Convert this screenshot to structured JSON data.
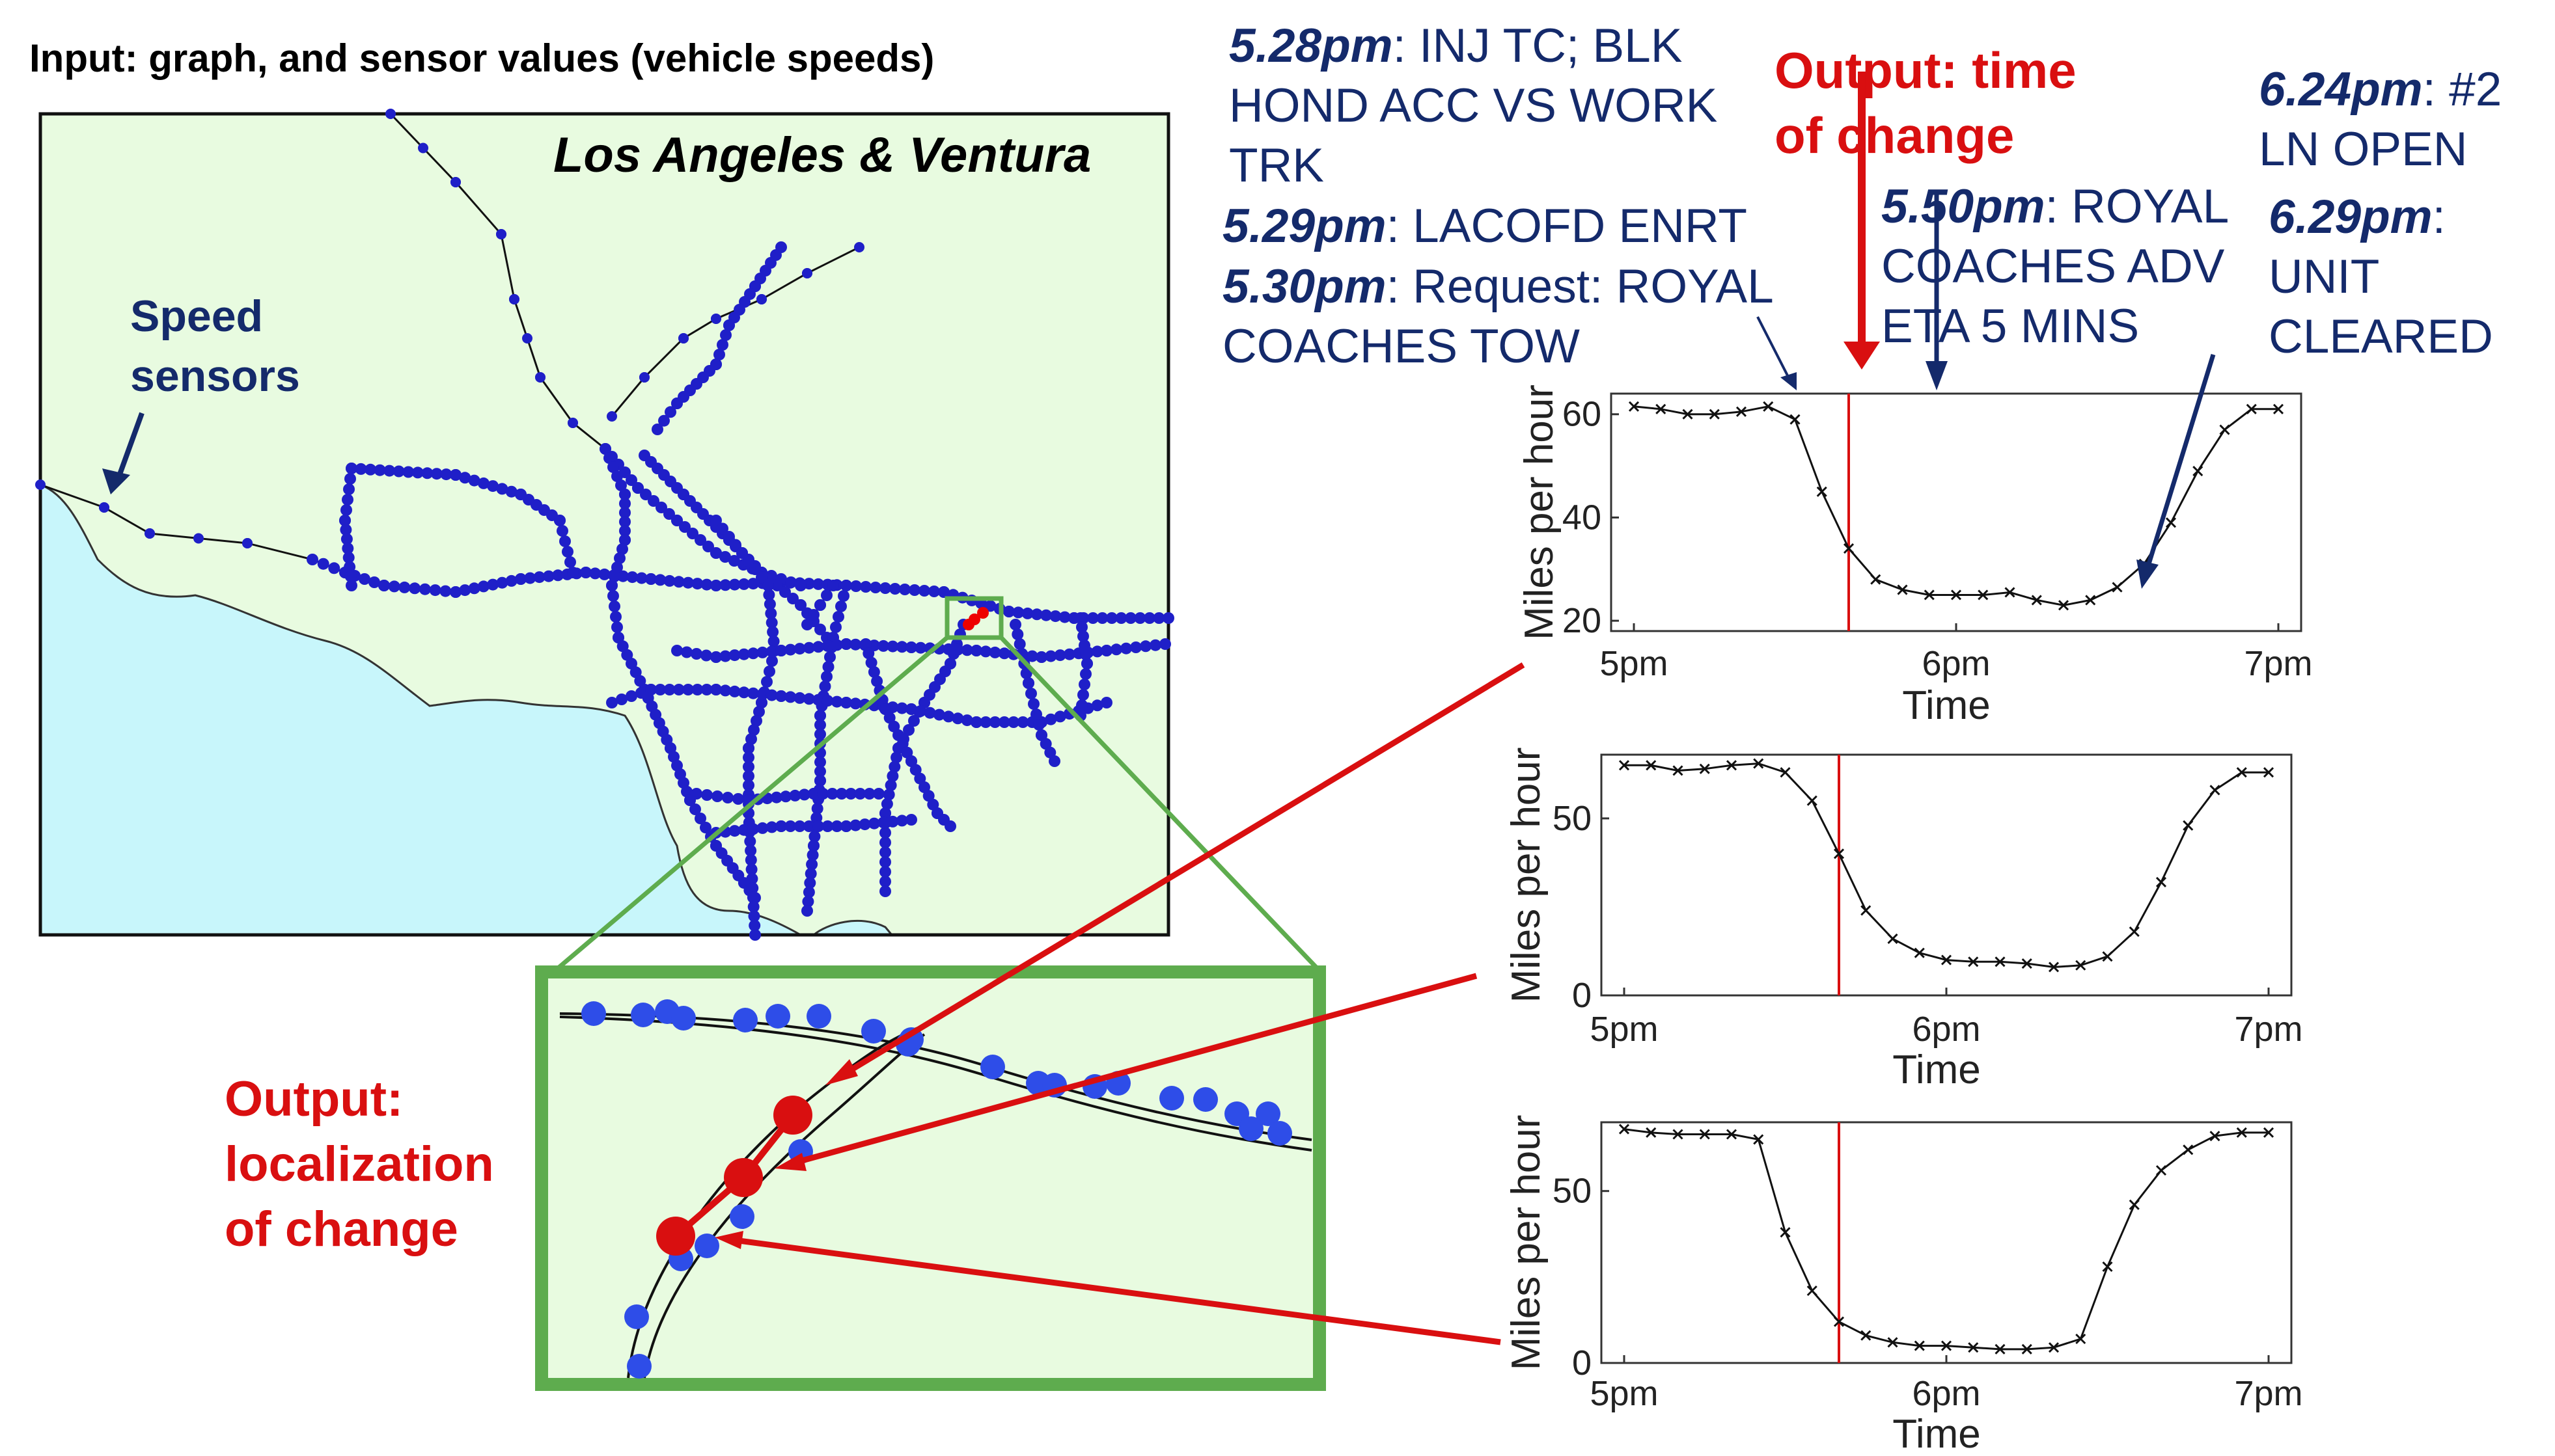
{
  "header": {
    "input_title": "Input: graph, and sensor values (vehicle speeds)"
  },
  "map": {
    "region_label": "Los Angeles & Ventura",
    "sensor_label_line1": "Speed",
    "sensor_label_line2": "sensors"
  },
  "output_time": {
    "line1": "Output: time",
    "line2": "of change"
  },
  "output_localization": {
    "line1": "Output:",
    "line2": "localization",
    "line3": "of change"
  },
  "events": [
    {
      "time": "5.28pm",
      "text_line1": ": INJ TC; BLK",
      "text_line2": "HOND ACC VS WORK",
      "text_line3": "TRK"
    },
    {
      "time": "5.29pm",
      "text_line1": ": LACOFD ENRT"
    },
    {
      "time": "5.30pm",
      "text_line1": ": Request: ROYAL",
      "text_line2": "COACHES TOW"
    },
    {
      "time": "5.50pm",
      "text_line1": ": ROYAL",
      "text_line2": "COACHES ADV",
      "text_line3": "ETA 5 MINS"
    },
    {
      "time": "6.24pm",
      "text_line1": ": #2",
      "text_line2": "LN OPEN"
    },
    {
      "time": "6.29pm",
      "text_line1": ":",
      "text_line2": "UNIT",
      "text_line3": "CLEARED"
    }
  ],
  "colors": {
    "navy": "#142a6b",
    "red": "#d90f10",
    "sensor_blue": "#1f1fc8",
    "land": "#e8fbe0",
    "sea": "#c8f6fb",
    "zoom_green": "#5eac4e"
  },
  "chart_data": [
    {
      "type": "line",
      "title": "",
      "xlabel": "Time",
      "ylabel": "Miles per hour",
      "xlim": [
        0,
        120
      ],
      "ylim": [
        18,
        64
      ],
      "xticks": [
        0,
        60,
        120
      ],
      "xtick_labels": [
        "5pm",
        "6pm",
        "7pm"
      ],
      "yticks": [
        20,
        40,
        60
      ],
      "ytick_labels": [
        "20",
        "40",
        "60"
      ],
      "change_point_x": 40,
      "x": [
        0,
        5,
        10,
        15,
        20,
        25,
        30,
        35,
        40,
        45,
        50,
        55,
        60,
        65,
        70,
        75,
        80,
        85,
        90,
        95,
        100,
        105,
        110,
        115,
        120
      ],
      "y": [
        61.5,
        61,
        60,
        60,
        60.5,
        61.5,
        59,
        45,
        34,
        28,
        26,
        25,
        25,
        25,
        25.5,
        24,
        23,
        24,
        26.5,
        31,
        39,
        49,
        57,
        61,
        61
      ]
    },
    {
      "type": "line",
      "title": "",
      "xlabel": "Time",
      "ylabel": "Miles per hour",
      "xlim": [
        0,
        120
      ],
      "ylim": [
        0,
        68
      ],
      "xticks": [
        0,
        60,
        120
      ],
      "xtick_labels": [
        "5pm",
        "6pm",
        "7pm"
      ],
      "yticks": [
        0,
        50
      ],
      "ytick_labels": [
        "0",
        "50"
      ],
      "change_point_x": 40,
      "x": [
        0,
        5,
        10,
        15,
        20,
        25,
        30,
        35,
        40,
        45,
        50,
        55,
        60,
        65,
        70,
        75,
        80,
        85,
        90,
        95,
        100,
        105,
        110,
        115,
        120
      ],
      "y": [
        65,
        65,
        63.5,
        64,
        65,
        65.5,
        63,
        55,
        40,
        24,
        16,
        12,
        10,
        9.5,
        9.5,
        9,
        8,
        8.5,
        11,
        18,
        32,
        48,
        58,
        63,
        63
      ]
    },
    {
      "type": "line",
      "title": "",
      "xlabel": "Time",
      "ylabel": "Miles per hour",
      "xlim": [
        0,
        120
      ],
      "ylim": [
        0,
        70
      ],
      "xticks": [
        0,
        60,
        120
      ],
      "xtick_labels": [
        "5pm",
        "6pm",
        "7pm"
      ],
      "yticks": [
        0,
        50
      ],
      "ytick_labels": [
        "0",
        "50"
      ],
      "change_point_x": 40,
      "x": [
        0,
        5,
        10,
        15,
        20,
        25,
        30,
        35,
        40,
        45,
        50,
        55,
        60,
        65,
        70,
        75,
        80,
        85,
        90,
        95,
        100,
        105,
        110,
        115,
        120
      ],
      "y": [
        68,
        67,
        66.5,
        66.5,
        66.5,
        65,
        38,
        21,
        12,
        8,
        6,
        5,
        5,
        4.5,
        4,
        4,
        4.5,
        7,
        28,
        46,
        56,
        62,
        66,
        67,
        67
      ]
    }
  ]
}
